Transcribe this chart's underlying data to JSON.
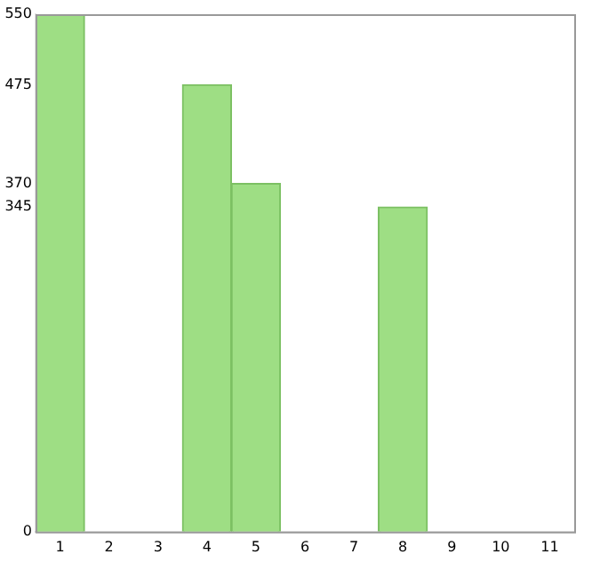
{
  "chart_data": {
    "type": "bar",
    "categories": [
      "1",
      "2",
      "3",
      "4",
      "5",
      "6",
      "7",
      "8",
      "9",
      "10",
      "11"
    ],
    "series": [
      {
        "color": "#9ede84",
        "values": [
          550,
          0,
          0,
          475,
          370,
          0,
          0,
          345,
          0,
          0,
          0
        ]
      }
    ],
    "ylim": [
      0,
      550
    ],
    "yticks": [
      0,
      345,
      370,
      475,
      550
    ],
    "grid": false,
    "legend": false
  }
}
